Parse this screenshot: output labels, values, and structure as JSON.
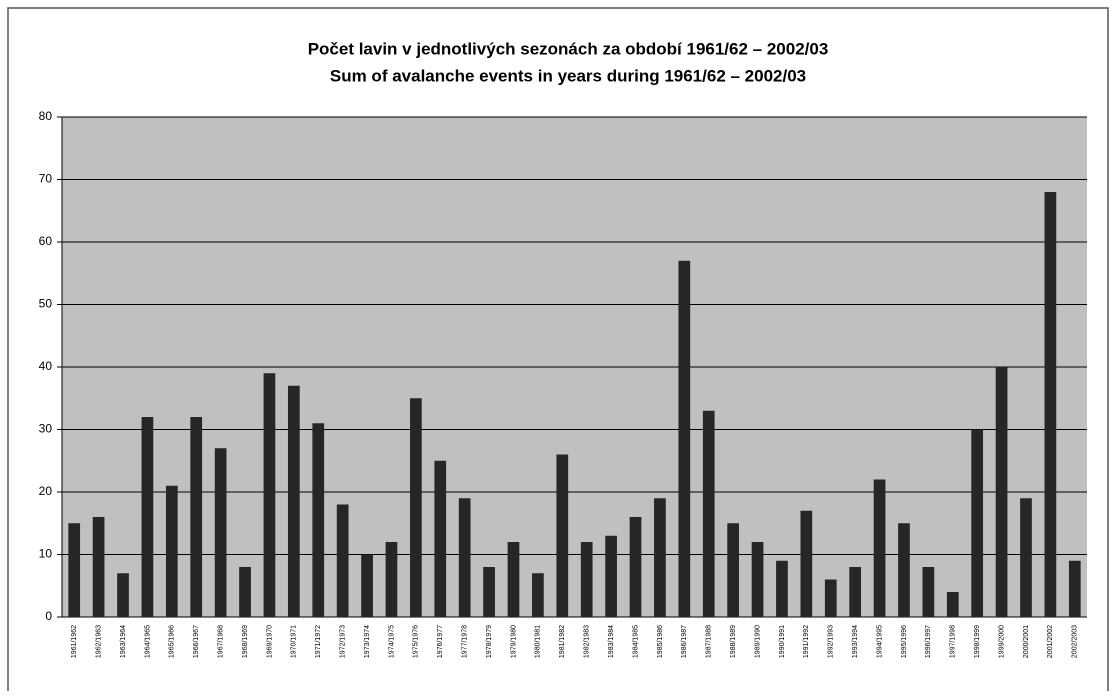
{
  "chart_data": {
    "type": "bar",
    "title": "Počet lavin v jednotlivých sezonách za období 1961/62 – 2002/03",
    "subtitle": "Sum of avalanche events in years during 1961/62 – 2002/03",
    "categories": [
      "1961/1962",
      "1962/1963",
      "1963/1964",
      "1964/1965",
      "1965/1966",
      "1966/1967",
      "1967/1968",
      "1968/1969",
      "1969/1970",
      "1970/1971",
      "1971/1972",
      "1972/1973",
      "1973/1974",
      "1974/1975",
      "1975/1976",
      "1976/1977",
      "1977/1978",
      "1978/1979",
      "1979/1980",
      "1980/1981",
      "1981/1982",
      "1982/1983",
      "1983/1984",
      "1984/1985",
      "1985/1986",
      "1986/1987",
      "1987/1988",
      "1988/1989",
      "1989/1990",
      "1990/1991",
      "1991/1992",
      "1992/1993",
      "1993/1994",
      "1994/1995",
      "1995/1996",
      "1996/1997",
      "1997/1998",
      "1998/1999",
      "1999/2000",
      "2000/2001",
      "2001/2002",
      "2002/2003"
    ],
    "values": [
      15,
      16,
      7,
      32,
      21,
      32,
      27,
      8,
      39,
      37,
      31,
      18,
      10,
      12,
      35,
      25,
      19,
      8,
      12,
      7,
      26,
      12,
      13,
      16,
      19,
      57,
      33,
      15,
      12,
      9,
      17,
      6,
      8,
      22,
      15,
      8,
      4,
      30,
      40,
      19,
      68,
      9
    ],
    "color": "#262626",
    "ylim": [
      0,
      80
    ],
    "yticks": [
      0,
      10,
      20,
      30,
      40,
      50,
      60,
      70,
      80
    ],
    "grid": true
  }
}
